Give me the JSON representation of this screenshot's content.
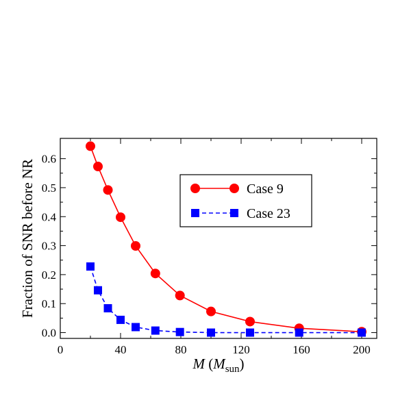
{
  "chart_data": {
    "type": "line",
    "title": "",
    "xlabel": {
      "main": "M",
      "paren_open": " (",
      "sub_main": "M",
      "subscript": "sun",
      "paren_close": ")"
    },
    "ylabel": "Fraction of SNR before NR",
    "xlim": [
      0,
      210
    ],
    "ylim": [
      -0.02,
      0.67
    ],
    "x_ticks": [
      0,
      40,
      80,
      120,
      160,
      200
    ],
    "y_ticks": [
      0.0,
      0.1,
      0.2,
      0.3,
      0.4,
      0.5,
      0.6
    ],
    "x_tick_labels": [
      "0",
      "40",
      "80",
      "120",
      "160",
      "200"
    ],
    "y_tick_labels": [
      "0.0",
      "0.1",
      "0.2",
      "0.3",
      "0.4",
      "0.5",
      "0.6"
    ],
    "grid": false,
    "legend_position": "upper-right",
    "series": [
      {
        "name": "Case 9",
        "color": "#ff0000",
        "marker": "circle",
        "line_style": "solid",
        "x": [
          20,
          25,
          31.6,
          40,
          50,
          63.1,
          79.4,
          100,
          125.9,
          158.5,
          200
        ],
        "y": [
          0.643,
          0.573,
          0.492,
          0.398,
          0.299,
          0.204,
          0.128,
          0.073,
          0.038,
          0.015,
          0.003
        ]
      },
      {
        "name": "Case 23",
        "color": "#0000ff",
        "marker": "square",
        "line_style": "dashed",
        "x": [
          20,
          25,
          31.6,
          40,
          50,
          63.1,
          79.4,
          100,
          125.9,
          158.5,
          200
        ],
        "y": [
          0.228,
          0.146,
          0.084,
          0.044,
          0.019,
          0.007,
          0.002,
          0.0,
          0.0,
          0.0,
          0.0
        ]
      }
    ]
  }
}
